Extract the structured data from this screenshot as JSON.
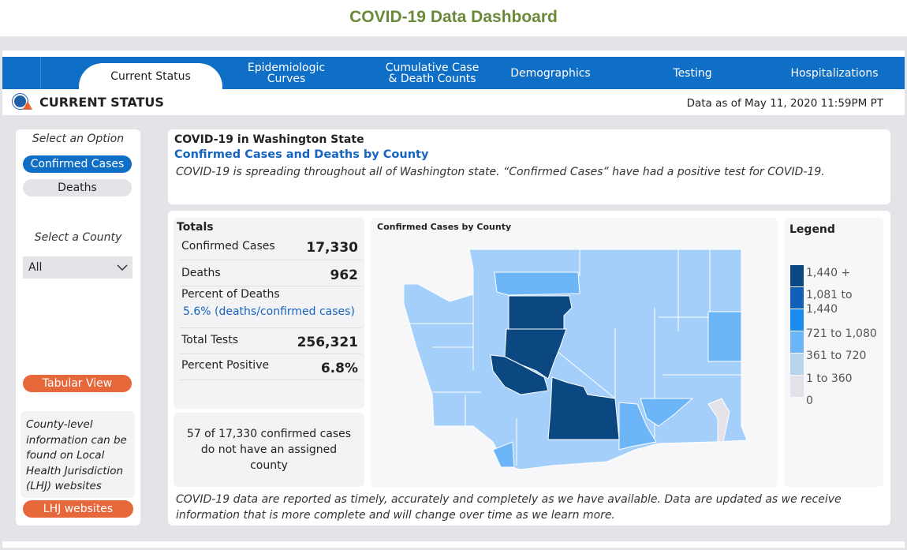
{
  "title": "COVID-19 Data Dashboard",
  "tabs": [
    "Current Status",
    "Epidemiologic Curves",
    "Cumulative Case & Death Counts",
    "Demographics",
    "Testing",
    "Hospitalizations"
  ],
  "tabs_lines": {
    "epi": [
      "Epidemiologic",
      "Curves"
    ],
    "cum": [
      "Cumulative Case",
      "& Death Counts"
    ]
  },
  "header": {
    "title": "CURRENT STATUS",
    "as_of": "Data as of May 11, 2020 11:59PM PT"
  },
  "sidebar": {
    "select_option": "Select an Option",
    "options": [
      "Confirmed Cases",
      "Deaths"
    ],
    "select_county": "Select a County",
    "county_value": "All",
    "tabular": "Tabular View",
    "lhj_note": "County-level information can be found on Local Health Jurisdiction (LHJ) websites",
    "lhj_button": "LHJ websites"
  },
  "intro": {
    "heading": "COVID-19 in Washington State",
    "subheading": "Confirmed Cases and Deaths by County",
    "text": "COVID-19 is spreading throughout all of Washington state. “Confirmed Cases” have had a positive test for COVID-19."
  },
  "totals": {
    "heading": "Totals",
    "confirmed_label": "Confirmed Cases",
    "confirmed": "17,330",
    "deaths_label": "Deaths",
    "deaths": "962",
    "pct_deaths_label": "Percent of Deaths",
    "pct_deaths": "5.6% (deaths/confirmed cases)",
    "tests_label": "Total Tests",
    "tests": "256,321",
    "pos_label": "Percent Positive",
    "pos": "6.8%"
  },
  "unassigned": "57 of 17,330 confirmed cases do not have an assigned county",
  "map": {
    "title": "Confirmed Cases by County"
  },
  "legend": {
    "title": "Legend",
    "items": [
      {
        "label": "1,440 +",
        "color": "#0b4780"
      },
      {
        "label": "1,081 to 1,440",
        "color": "#1060b8"
      },
      {
        "label": "721 to 1,080",
        "color": "#1a8cf0"
      },
      {
        "label": "361 to 720",
        "color": "#6cb6f7"
      },
      {
        "label": "1 to 360",
        "color": "#b8d5eb"
      },
      {
        "label": "0",
        "color": "#e2e3ea"
      }
    ]
  },
  "footer": "COVID-19 data are reported as timely, accurately and completely as we have available. Data are updated as we receive information that is more complete and will change over time as we learn more."
}
